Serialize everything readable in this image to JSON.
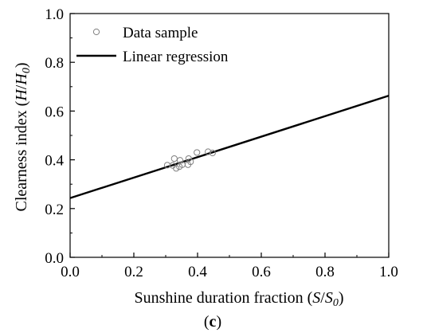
{
  "chart_data": {
    "type": "scatter",
    "panel_label": {
      "open": "(",
      "letter": "c",
      "close": ")"
    },
    "xlabel": {
      "prefix": "Sunshine duration fraction (",
      "var": "S",
      "slash": "/",
      "var2": "S",
      "sub": "0",
      "suffix": ")"
    },
    "ylabel": {
      "prefix": "Clearness index (",
      "var": "H",
      "slash": "/",
      "var2": "H",
      "sub": "0",
      "suffix": ")"
    },
    "xlim": [
      0,
      1
    ],
    "ylim": [
      0,
      1
    ],
    "xticks": [
      "0.0",
      "0.2",
      "0.4",
      "0.6",
      "0.8",
      "1.0"
    ],
    "yticks": [
      "0.0",
      "0.2",
      "0.4",
      "0.6",
      "0.8",
      "1.0"
    ],
    "grid": false,
    "legend": {
      "placement": "top-left",
      "entries": [
        "Data sample",
        "Linear regression"
      ]
    },
    "series": [
      {
        "name": "Data sample",
        "kind": "scatter",
        "marker": "open-circle",
        "color": "#808080",
        "points": [
          {
            "x": 0.305,
            "y": 0.378
          },
          {
            "x": 0.322,
            "y": 0.377
          },
          {
            "x": 0.327,
            "y": 0.405
          },
          {
            "x": 0.333,
            "y": 0.365
          },
          {
            "x": 0.343,
            "y": 0.372
          },
          {
            "x": 0.345,
            "y": 0.398
          },
          {
            "x": 0.352,
            "y": 0.38
          },
          {
            "x": 0.37,
            "y": 0.38
          },
          {
            "x": 0.372,
            "y": 0.405
          },
          {
            "x": 0.378,
            "y": 0.392
          },
          {
            "x": 0.398,
            "y": 0.43
          },
          {
            "x": 0.433,
            "y": 0.433
          },
          {
            "x": 0.447,
            "y": 0.428
          }
        ]
      },
      {
        "name": "Linear regression",
        "kind": "line",
        "color": "#000000",
        "intercept": 0.243,
        "slope": 0.42
      }
    ]
  }
}
